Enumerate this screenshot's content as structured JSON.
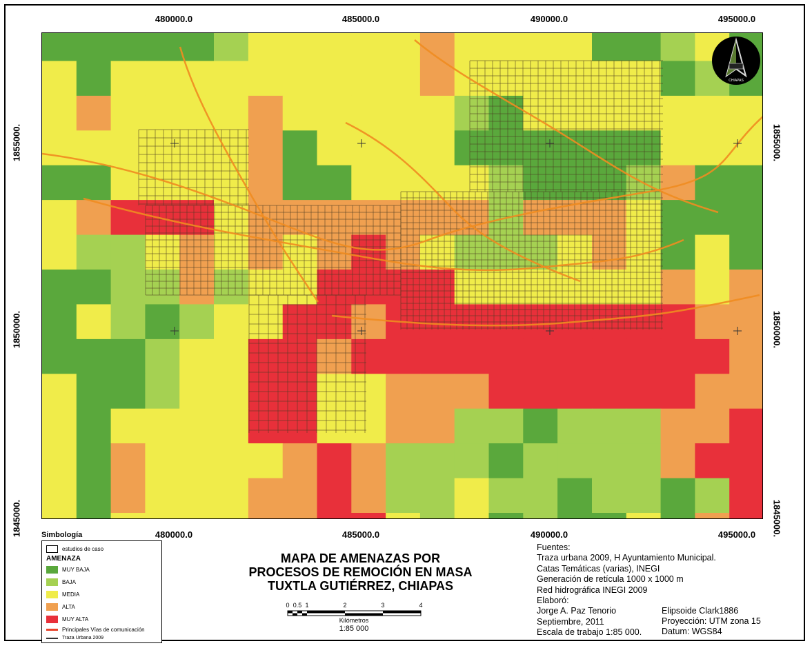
{
  "map": {
    "title_lines": [
      "MAPA DE AMENAZAS POR",
      "PROCESOS DE REMOCIÓN EN MASA",
      "TUXTLA GUTIÉRREZ, CHIAPAS"
    ],
    "x_ticks": [
      "480000.0",
      "485000.0",
      "490000.0",
      "495000.0"
    ],
    "y_ticks": [
      "1855000.",
      "1850000.",
      "1845000."
    ],
    "north_arrow_label": "CHIAPAS",
    "hazard_colors": {
      "muy_baja": "#5aa83c",
      "baja": "#a5d152",
      "media": "#f0ec4a",
      "alta": "#f0a050",
      "muy_alta": "#e8303a"
    }
  },
  "legend": {
    "title": "Simbología",
    "case_studies": "estudios de caso",
    "group_label": "AMENAZA",
    "classes": [
      {
        "label": "MUY BAJA",
        "color": "#5aa83c"
      },
      {
        "label": "BAJA",
        "color": "#a5d152"
      },
      {
        "label": "MEDIA",
        "color": "#f0ec4a"
      },
      {
        "label": "ALTA",
        "color": "#f0a050"
      },
      {
        "label": "MUY ALTA",
        "color": "#e8303a"
      }
    ],
    "roads": {
      "label": "Principales Vías de comunicación",
      "color": "#e8432a"
    },
    "urban": {
      "label": "Traza Urbana 2009",
      "color": "#333333"
    }
  },
  "scale": {
    "ticks": [
      "0",
      "0.5",
      "1",
      "2",
      "3",
      "4"
    ],
    "unit": "Kilómetros",
    "ratio": "1:85 000"
  },
  "sources": {
    "lines": [
      "Fuentes:",
      "Traza urbana 2009, H Ayuntamiento Municipal.",
      "Catas Temáticas (varias), INEGI",
      "Generación de retícula 1000 x 1000 m",
      "Red hidrográfica INEGI 2009",
      "Elaboró:",
      "Jorge A. Paz Tenorio",
      "Septiembre, 2011",
      "Escala de trabajo 1:85 000."
    ],
    "projection": [
      "Elipsoide Clark1886",
      "Proyección: UTM zona 15",
      "Datum: WGS84"
    ]
  }
}
